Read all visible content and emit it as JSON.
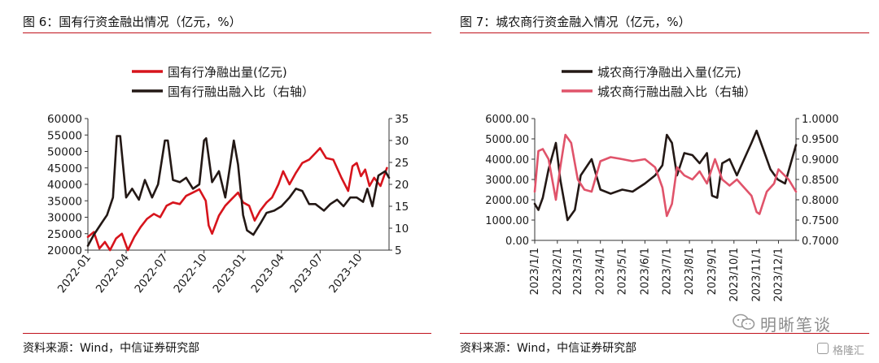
{
  "figures": [
    {
      "title": "图 6：国有行资金融出情况（亿元，%）",
      "source": "资料来源：Wind，中信证券研究部"
    },
    {
      "title": "图 7：城农商行资金融入情况（亿元，%）",
      "source": "资料来源：Wind，中信证券研究部"
    }
  ],
  "watermark": {
    "text": "明晰笔谈",
    "icon": "wechat-icon"
  },
  "corner_logo": {
    "text": "格隆汇",
    "icon": "gelonghui-logo-icon"
  },
  "chart_data": [
    {
      "type": "line",
      "x_tick_labels": [
        "2022-01",
        "2022-04",
        "2022-07",
        "2022-10",
        "2023-01",
        "2023-04",
        "2023-07",
        "2023-10"
      ],
      "x_range": [
        "2022-01-01",
        "2023-12-10"
      ],
      "y_left": {
        "ticks": [
          "20000",
          "25000",
          "30000",
          "35000",
          "40000",
          "45000",
          "50000",
          "55000",
          "60000"
        ],
        "range": [
          20000,
          60000
        ]
      },
      "y_right": {
        "ticks": [
          "5",
          "10",
          "15",
          "20",
          "25",
          "30",
          "35"
        ],
        "range": [
          5,
          35
        ]
      },
      "series": [
        {
          "name": "国有行净融出量(亿元)",
          "axis": "left",
          "color": "#d7141c",
          "points": [
            [
              "2022-01-01",
              24000
            ],
            [
              "2022-01-15",
              25500
            ],
            [
              "2022-01-28",
              20500
            ],
            [
              "2022-02-10",
              22500
            ],
            [
              "2022-02-22",
              20000
            ],
            [
              "2022-03-08",
              23500
            ],
            [
              "2022-03-22",
              25000
            ],
            [
              "2022-04-05",
              20000
            ],
            [
              "2022-04-20",
              24000
            ],
            [
              "2022-05-05",
              27000
            ],
            [
              "2022-05-20",
              29500
            ],
            [
              "2022-06-05",
              31000
            ],
            [
              "2022-06-20",
              30000
            ],
            [
              "2022-07-05",
              33500
            ],
            [
              "2022-07-20",
              34500
            ],
            [
              "2022-08-05",
              34000
            ],
            [
              "2022-08-20",
              36500
            ],
            [
              "2022-09-05",
              37500
            ],
            [
              "2022-09-20",
              38500
            ],
            [
              "2022-10-05",
              35000
            ],
            [
              "2022-10-12",
              27500
            ],
            [
              "2022-10-20",
              25000
            ],
            [
              "2022-11-05",
              30500
            ],
            [
              "2022-11-20",
              33500
            ],
            [
              "2022-12-05",
              35500
            ],
            [
              "2022-12-20",
              37500
            ],
            [
              "2023-01-01",
              34500
            ],
            [
              "2023-01-15",
              33500
            ],
            [
              "2023-01-28",
              29000
            ],
            [
              "2023-02-10",
              32000
            ],
            [
              "2023-02-25",
              34500
            ],
            [
              "2023-03-10",
              36000
            ],
            [
              "2023-03-25",
              40000
            ],
            [
              "2023-04-05",
              44000
            ],
            [
              "2023-04-20",
              40000
            ],
            [
              "2023-05-05",
              43500
            ],
            [
              "2023-05-20",
              46500
            ],
            [
              "2023-06-05",
              47500
            ],
            [
              "2023-06-20",
              49500
            ],
            [
              "2023-07-01",
              51000
            ],
            [
              "2023-07-15",
              48000
            ],
            [
              "2023-08-01",
              47500
            ],
            [
              "2023-08-20",
              42000
            ],
            [
              "2023-09-05",
              38000
            ],
            [
              "2023-09-15",
              45500
            ],
            [
              "2023-09-25",
              46500
            ],
            [
              "2023-10-05",
              42500
            ],
            [
              "2023-10-15",
              44500
            ],
            [
              "2023-10-25",
              39500
            ],
            [
              "2023-11-05",
              42000
            ],
            [
              "2023-11-20",
              39500
            ],
            [
              "2023-12-05",
              45000
            ]
          ]
        },
        {
          "name": "国有行融出融入比（右轴）",
          "axis": "right",
          "color": "#231815",
          "points": [
            [
              "2022-01-01",
              6
            ],
            [
              "2022-01-15",
              8.5
            ],
            [
              "2022-02-01",
              11
            ],
            [
              "2022-02-15",
              13
            ],
            [
              "2022-03-01",
              17
            ],
            [
              "2022-03-10",
              31
            ],
            [
              "2022-03-18",
              31
            ],
            [
              "2022-04-01",
              17
            ],
            [
              "2022-04-15",
              19
            ],
            [
              "2022-05-01",
              16.5
            ],
            [
              "2022-05-15",
              21
            ],
            [
              "2022-06-01",
              17
            ],
            [
              "2022-06-15",
              20
            ],
            [
              "2022-07-01",
              30
            ],
            [
              "2022-07-08",
              30
            ],
            [
              "2022-07-20",
              21
            ],
            [
              "2022-08-05",
              20.5
            ],
            [
              "2022-08-20",
              21.5
            ],
            [
              "2022-09-05",
              19
            ],
            [
              "2022-09-20",
              20
            ],
            [
              "2022-10-01",
              30
            ],
            [
              "2022-10-06",
              30.5
            ],
            [
              "2022-10-20",
              20.5
            ],
            [
              "2022-11-05",
              23
            ],
            [
              "2022-11-20",
              17
            ],
            [
              "2022-12-01",
              24
            ],
            [
              "2022-12-10",
              30
            ],
            [
              "2022-12-20",
              24.5
            ],
            [
              "2023-01-01",
              13
            ],
            [
              "2023-01-10",
              9.5
            ],
            [
              "2023-01-25",
              8.5
            ],
            [
              "2023-02-10",
              11
            ],
            [
              "2023-02-25",
              13.5
            ],
            [
              "2023-03-15",
              14
            ],
            [
              "2023-04-01",
              15
            ],
            [
              "2023-04-20",
              17
            ],
            [
              "2023-05-05",
              19
            ],
            [
              "2023-05-20",
              18.5
            ],
            [
              "2023-06-05",
              15.5
            ],
            [
              "2023-06-20",
              15.5
            ],
            [
              "2023-07-10",
              14
            ],
            [
              "2023-07-25",
              15.5
            ],
            [
              "2023-08-10",
              16.5
            ],
            [
              "2023-08-25",
              15
            ],
            [
              "2023-09-10",
              17
            ],
            [
              "2023-09-25",
              17
            ],
            [
              "2023-10-10",
              16
            ],
            [
              "2023-10-20",
              19
            ],
            [
              "2023-11-01",
              15
            ],
            [
              "2023-11-15",
              22
            ],
            [
              "2023-12-01",
              23
            ],
            [
              "2023-12-10",
              21.5
            ]
          ]
        }
      ]
    },
    {
      "type": "line",
      "x_tick_labels": [
        "2023/1/1",
        "2023/2/1",
        "2023/3/1",
        "2023/4/1",
        "2023/5/1",
        "2023/6/1",
        "2023/7/1",
        "2023/8/1",
        "2023/9/1",
        "2023/10/1",
        "2023/11/1",
        "2023/12/1"
      ],
      "x_range": [
        "2023-01-01",
        "2023-12-25"
      ],
      "y_left": {
        "ticks": [
          "0.00",
          "1000.00",
          "2000.00",
          "3000.00",
          "4000.00",
          "5000.00",
          "6000.00"
        ],
        "range": [
          0,
          6000
        ]
      },
      "y_right": {
        "ticks": [
          "0.7000",
          "0.7500",
          "0.8000",
          "0.8500",
          "0.9000",
          "0.9500",
          "1.0000"
        ],
        "range": [
          0.7,
          1.0
        ]
      },
      "series": [
        {
          "name": "城农商行净融出入量(亿元)",
          "axis": "left",
          "color": "#231815",
          "points": [
            [
              "2023-01-01",
              1800
            ],
            [
              "2023-01-06",
              1500
            ],
            [
              "2023-01-12",
              2100
            ],
            [
              "2023-01-20",
              3500
            ],
            [
              "2023-01-30",
              4800
            ],
            [
              "2023-02-05",
              3000
            ],
            [
              "2023-02-15",
              1000
            ],
            [
              "2023-02-25",
              1500
            ],
            [
              "2023-03-05",
              3200
            ],
            [
              "2023-03-20",
              4000
            ],
            [
              "2023-04-01",
              2500
            ],
            [
              "2023-04-15",
              2300
            ],
            [
              "2023-05-01",
              2500
            ],
            [
              "2023-05-15",
              2400
            ],
            [
              "2023-06-01",
              2800
            ],
            [
              "2023-06-15",
              3200
            ],
            [
              "2023-06-25",
              3700
            ],
            [
              "2023-07-01",
              5200
            ],
            [
              "2023-07-08",
              4800
            ],
            [
              "2023-07-15",
              3200
            ],
            [
              "2023-07-25",
              4300
            ],
            [
              "2023-08-05",
              4200
            ],
            [
              "2023-08-15",
              3800
            ],
            [
              "2023-08-25",
              4300
            ],
            [
              "2023-09-01",
              2200
            ],
            [
              "2023-09-08",
              2100
            ],
            [
              "2023-09-15",
              3800
            ],
            [
              "2023-09-25",
              4000
            ],
            [
              "2023-10-05",
              3200
            ],
            [
              "2023-10-15",
              4000
            ],
            [
              "2023-10-25",
              4800
            ],
            [
              "2023-11-01",
              5400
            ],
            [
              "2023-11-10",
              4500
            ],
            [
              "2023-11-20",
              3500
            ],
            [
              "2023-11-30",
              3000
            ],
            [
              "2023-12-10",
              2800
            ],
            [
              "2023-12-25",
              4700
            ]
          ]
        },
        {
          "name": "城农商行融出融入比（右轴）",
          "axis": "right",
          "color": "#e0536a",
          "points": [
            [
              "2023-01-01",
              0.82
            ],
            [
              "2023-01-06",
              0.92
            ],
            [
              "2023-01-12",
              0.925
            ],
            [
              "2023-01-20",
              0.9
            ],
            [
              "2023-01-30",
              0.8
            ],
            [
              "2023-02-05",
              0.88
            ],
            [
              "2023-02-12",
              0.96
            ],
            [
              "2023-02-20",
              0.94
            ],
            [
              "2023-03-01",
              0.85
            ],
            [
              "2023-03-10",
              0.825
            ],
            [
              "2023-03-20",
              0.82
            ],
            [
              "2023-04-01",
              0.895
            ],
            [
              "2023-04-15",
              0.905
            ],
            [
              "2023-05-01",
              0.9
            ],
            [
              "2023-05-15",
              0.895
            ],
            [
              "2023-06-01",
              0.9
            ],
            [
              "2023-06-15",
              0.88
            ],
            [
              "2023-06-25",
              0.83
            ],
            [
              "2023-07-01",
              0.76
            ],
            [
              "2023-07-08",
              0.79
            ],
            [
              "2023-07-15",
              0.88
            ],
            [
              "2023-07-25",
              0.86
            ],
            [
              "2023-08-05",
              0.85
            ],
            [
              "2023-08-15",
              0.87
            ],
            [
              "2023-08-25",
              0.84
            ],
            [
              "2023-09-05",
              0.9
            ],
            [
              "2023-09-15",
              0.85
            ],
            [
              "2023-09-25",
              0.835
            ],
            [
              "2023-10-05",
              0.85
            ],
            [
              "2023-10-15",
              0.83
            ],
            [
              "2023-10-25",
              0.81
            ],
            [
              "2023-11-01",
              0.77
            ],
            [
              "2023-11-05",
              0.765
            ],
            [
              "2023-11-15",
              0.82
            ],
            [
              "2023-11-25",
              0.84
            ],
            [
              "2023-12-01",
              0.875
            ],
            [
              "2023-12-15",
              0.85
            ],
            [
              "2023-12-25",
              0.82
            ]
          ]
        }
      ]
    }
  ]
}
